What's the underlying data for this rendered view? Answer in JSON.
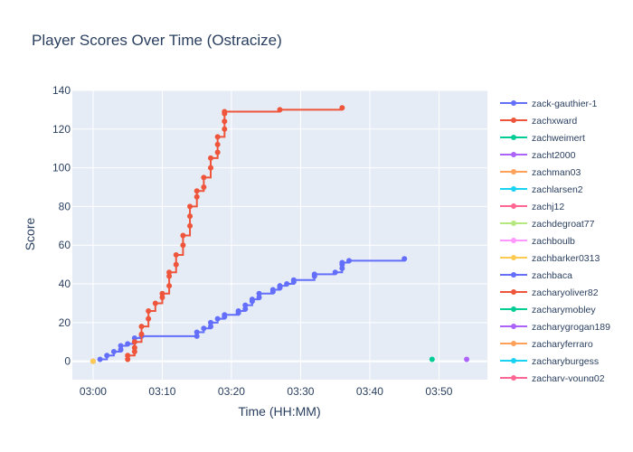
{
  "chart_data": {
    "type": "line",
    "title": "Player Scores Over Time (Ostracize)",
    "xlabel": "Time (HH:MM)",
    "ylabel": "Score",
    "x_ticks": [
      "03:00",
      "03:10",
      "03:20",
      "03:30",
      "03:40",
      "03:50"
    ],
    "x_range": [
      "02:57",
      "03:57"
    ],
    "y_ticks": [
      0,
      20,
      40,
      60,
      80,
      100,
      120,
      140
    ],
    "ylim": [
      -9.5,
      140
    ],
    "grid": true,
    "legend_position": "right",
    "series": [
      {
        "name": "zack-gauthier-1",
        "color": "#636efa",
        "mode": "lines+markers",
        "shape": "hv",
        "points": [
          [
            "03:01",
            1
          ],
          [
            "03:02",
            3
          ],
          [
            "03:03",
            5
          ],
          [
            "03:04",
            6
          ],
          [
            "03:04",
            8
          ],
          [
            "03:05",
            9
          ],
          [
            "03:06",
            10
          ],
          [
            "03:06",
            12
          ],
          [
            "03:07",
            13
          ],
          [
            "03:15",
            13
          ],
          [
            "03:15",
            15
          ],
          [
            "03:16",
            17
          ],
          [
            "03:17",
            18
          ],
          [
            "03:17",
            20
          ],
          [
            "03:18",
            22
          ],
          [
            "03:19",
            23
          ],
          [
            "03:19",
            24
          ],
          [
            "03:21",
            25
          ],
          [
            "03:21",
            26
          ],
          [
            "03:22",
            27
          ],
          [
            "03:22",
            29
          ],
          [
            "03:23",
            31
          ],
          [
            "03:23",
            32
          ],
          [
            "03:24",
            33
          ],
          [
            "03:24",
            35
          ],
          [
            "03:26",
            36
          ],
          [
            "03:26",
            37
          ],
          [
            "03:27",
            38
          ],
          [
            "03:27",
            39
          ],
          [
            "03:28",
            40
          ],
          [
            "03:29",
            41
          ],
          [
            "03:29",
            42
          ],
          [
            "03:32",
            44
          ],
          [
            "03:32",
            45
          ],
          [
            "03:35",
            46
          ],
          [
            "03:36",
            48
          ],
          [
            "03:36",
            50
          ],
          [
            "03:36",
            51
          ],
          [
            "03:37",
            52
          ],
          [
            "03:45",
            53
          ]
        ]
      },
      {
        "name": "zachxward",
        "color": "#ef553b",
        "mode": "lines+markers",
        "shape": "hv",
        "points": [
          [
            "03:05",
            1
          ],
          [
            "03:05",
            3
          ],
          [
            "03:06",
            5
          ],
          [
            "03:06",
            7
          ],
          [
            "03:06",
            10
          ],
          [
            "03:07",
            14
          ],
          [
            "03:07",
            18
          ],
          [
            "03:08",
            22
          ],
          [
            "03:08",
            26
          ],
          [
            "03:09",
            30
          ],
          [
            "03:10",
            33
          ],
          [
            "03:10",
            35
          ],
          [
            "03:11",
            39
          ],
          [
            "03:11",
            44
          ],
          [
            "03:11",
            46
          ],
          [
            "03:12",
            50
          ],
          [
            "03:12",
            55
          ],
          [
            "03:13",
            60
          ],
          [
            "03:13",
            65
          ],
          [
            "03:14",
            70
          ],
          [
            "03:14",
            75
          ],
          [
            "03:14",
            80
          ],
          [
            "03:15",
            85
          ],
          [
            "03:15",
            88
          ],
          [
            "03:16",
            90
          ],
          [
            "03:16",
            95
          ],
          [
            "03:17",
            100
          ],
          [
            "03:17",
            105
          ],
          [
            "03:18",
            108
          ],
          [
            "03:18",
            112
          ],
          [
            "03:18",
            116
          ],
          [
            "03:19",
            120
          ],
          [
            "03:19",
            124
          ],
          [
            "03:19",
            128
          ],
          [
            "03:19",
            129
          ],
          [
            "03:27",
            130
          ],
          [
            "03:36",
            131
          ]
        ]
      },
      {
        "name": "zachweimert",
        "color": "#00cc96",
        "mode": "markers",
        "points": [
          [
            "03:49",
            1
          ]
        ]
      },
      {
        "name": "zacht2000",
        "color": "#ab63fa",
        "mode": "markers",
        "points": [
          [
            "03:54",
            1
          ]
        ]
      },
      {
        "name": "zachman03",
        "color": "#ffa15a",
        "mode": "markers",
        "points": [
          [
            "03:00",
            0
          ]
        ]
      },
      {
        "name": "zachlarsen2",
        "color": "#19d3f3",
        "mode": "markers",
        "points": [
          [
            "03:00",
            0
          ]
        ]
      },
      {
        "name": "zachj12",
        "color": "#ff6692",
        "mode": "markers",
        "points": [
          [
            "03:00",
            0
          ]
        ]
      },
      {
        "name": "zachdegroat77",
        "color": "#b6e880",
        "mode": "markers",
        "points": [
          [
            "03:00",
            0
          ]
        ]
      },
      {
        "name": "zachboulb",
        "color": "#ff97ff",
        "mode": "markers",
        "points": [
          [
            "03:00",
            0
          ]
        ]
      },
      {
        "name": "zachbarker0313",
        "color": "#fecb52",
        "mode": "markers",
        "points": [
          [
            "03:00",
            0
          ]
        ]
      },
      {
        "name": "zachbaca",
        "color": "#636efa",
        "mode": "markers",
        "points": []
      },
      {
        "name": "zacharyoliver82",
        "color": "#ef553b",
        "mode": "markers",
        "points": []
      },
      {
        "name": "zacharymobley",
        "color": "#00cc96",
        "mode": "markers",
        "points": []
      },
      {
        "name": "zacharygrogan189",
        "color": "#ab63fa",
        "mode": "markers",
        "points": []
      },
      {
        "name": "zacharyferraro",
        "color": "#ffa15a",
        "mode": "markers",
        "points": []
      },
      {
        "name": "zacharyburgess",
        "color": "#19d3f3",
        "mode": "markers",
        "points": []
      },
      {
        "name": "zachary-young02",
        "color": "#ff6692",
        "mode": "markers",
        "points": []
      }
    ]
  }
}
